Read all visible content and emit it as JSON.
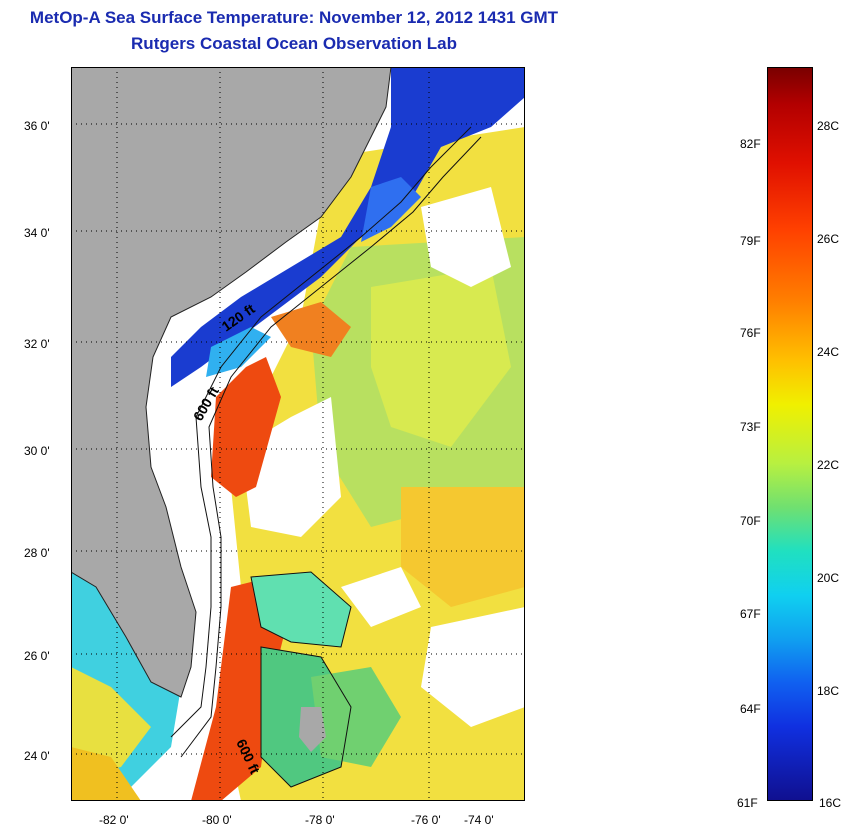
{
  "header": {
    "title": "MetOp-A Sea Surface Temperature:  November 12, 2012 1431 GMT",
    "subtitle": "Rutgers Coastal Ocean Observation Lab"
  },
  "map": {
    "lat_labels": [
      "36 0'",
      "34 0'",
      "32 0'",
      "30 0'",
      "28 0'",
      "26 0'",
      "24 0'"
    ],
    "lon_labels": [
      "-82 0'",
      "-80 0'",
      "-78 0'",
      "-76 0'",
      "-74 0'"
    ],
    "contour_labels": {
      "shelf_120": "120 ft",
      "shelf_600_north": "600 ft",
      "shelf_600_south": "600 ft"
    }
  },
  "colorbar": {
    "fahrenheit": [
      "82F",
      "79F",
      "76F",
      "73F",
      "70F",
      "67F",
      "64F",
      "61F"
    ],
    "celsius": [
      "28C",
      "26C",
      "24C",
      "22C",
      "20C",
      "18C",
      "16C"
    ],
    "colors": [
      "#7a0000",
      "#e01000",
      "#ff8000",
      "#f0f000",
      "#70e070",
      "#10d0f0",
      "#1060f0",
      "#101090"
    ]
  }
}
